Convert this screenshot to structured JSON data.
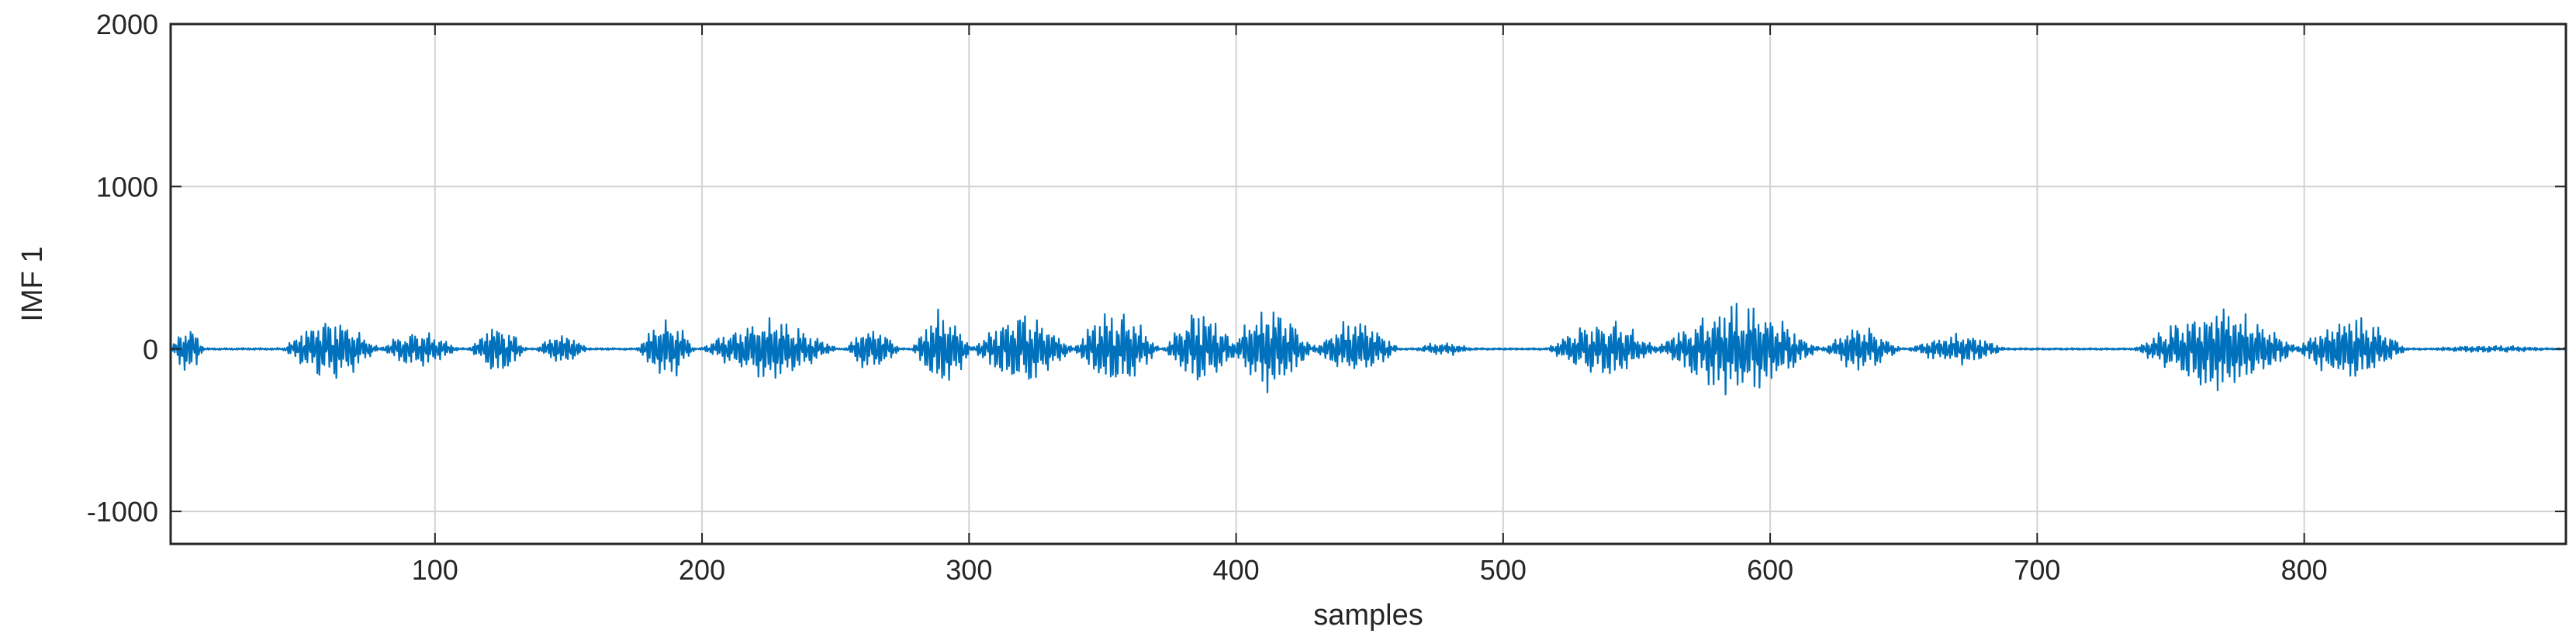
{
  "chart_data": {
    "type": "line",
    "title": "",
    "xlabel": "samples",
    "ylabel": "IMF 1",
    "xlim": [
      1,
      898
    ],
    "ylim": [
      -1200,
      2000
    ],
    "xticks": [
      100,
      200,
      300,
      400,
      500,
      600,
      700,
      800
    ],
    "yticks": [
      -1000,
      0,
      1000,
      2000
    ],
    "grid": true,
    "series_color": "#0072BD",
    "series": [
      {
        "bursts": [
          {
            "start": 1,
            "end": 14,
            "amplitude": 150
          },
          {
            "start": 42,
            "end": 80,
            "amplitude": 190
          },
          {
            "start": 78,
            "end": 110,
            "amplitude": 110
          },
          {
            "start": 112,
            "end": 135,
            "amplitude": 150
          },
          {
            "start": 137,
            "end": 158,
            "amplitude": 100
          },
          {
            "start": 175,
            "end": 198,
            "amplitude": 190
          },
          {
            "start": 198,
            "end": 252,
            "amplitude": 180
          },
          {
            "start": 253,
            "end": 275,
            "amplitude": 140
          },
          {
            "start": 278,
            "end": 302,
            "amplitude": 250
          },
          {
            "start": 300,
            "end": 340,
            "amplitude": 230
          },
          {
            "start": 338,
            "end": 372,
            "amplitude": 240
          },
          {
            "start": 372,
            "end": 402,
            "amplitude": 230
          },
          {
            "start": 396,
            "end": 430,
            "amplitude": 250
          },
          {
            "start": 427,
            "end": 462,
            "amplitude": 170
          },
          {
            "start": 465,
            "end": 490,
            "amplitude": 40
          },
          {
            "start": 515,
            "end": 560,
            "amplitude": 170
          },
          {
            "start": 555,
            "end": 620,
            "amplitude": 270
          },
          {
            "start": 618,
            "end": 650,
            "amplitude": 130
          },
          {
            "start": 650,
            "end": 690,
            "amplitude": 90
          },
          {
            "start": 735,
            "end": 800,
            "amplitude": 250
          },
          {
            "start": 795,
            "end": 840,
            "amplitude": 190
          },
          {
            "start": 840,
            "end": 898,
            "amplitude": 20
          }
        ]
      }
    ]
  }
}
